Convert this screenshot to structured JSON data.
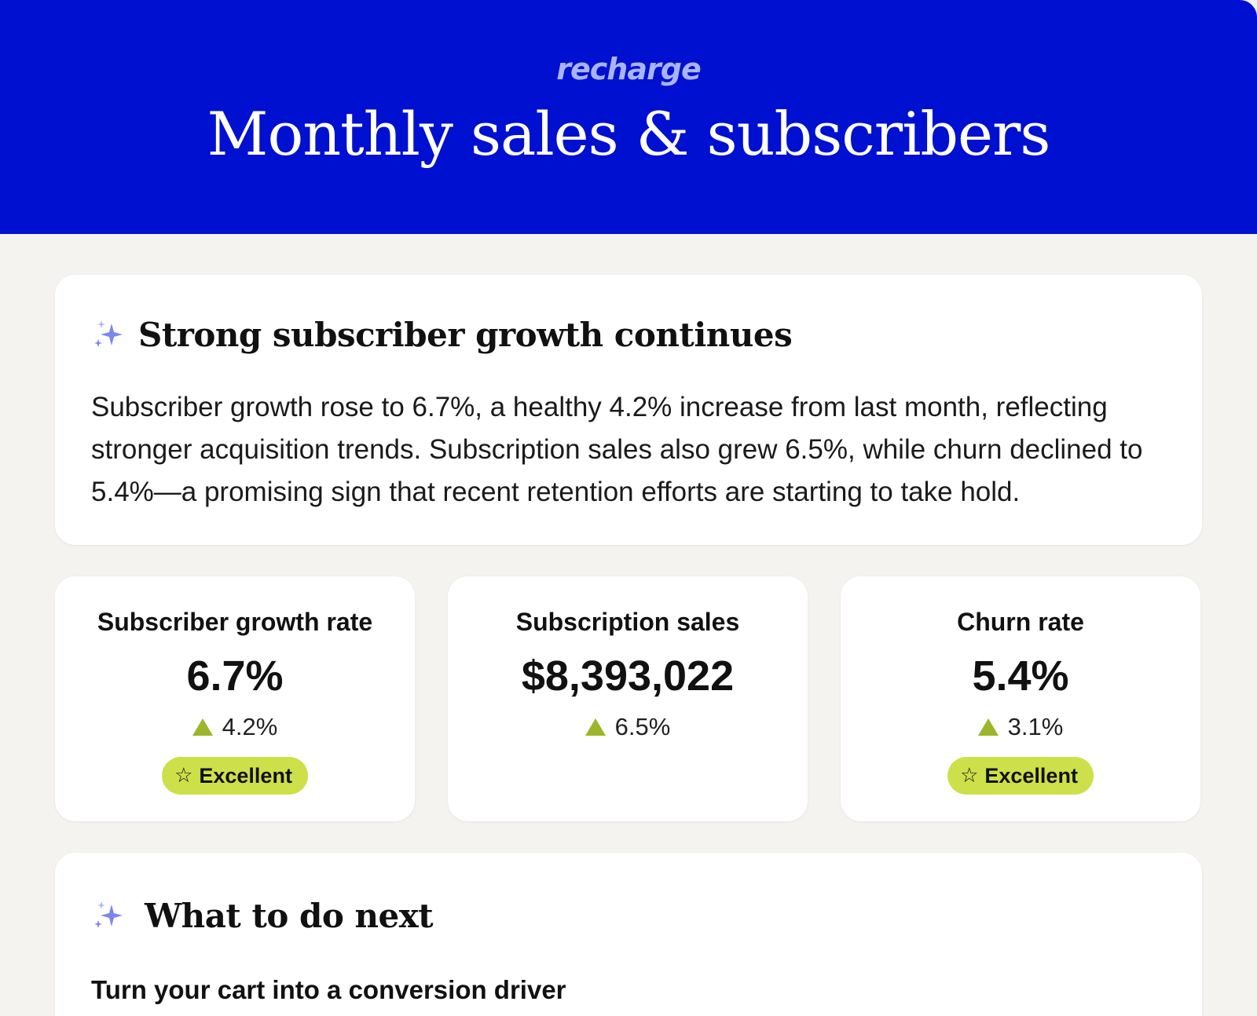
{
  "header": {
    "logo": "recharge",
    "title": "Monthly sales & subscribers"
  },
  "summary": {
    "icon": "sparkle-icon",
    "title": "Strong subscriber growth continues",
    "text": "Subscriber growth rose to 6.7%, a healthy 4.2% increase from last month, reflecting stronger acquisition trends. Subscription sales also grew 6.5%, while churn declined to 5.4%—a promising sign that recent retention efforts are starting to take hold."
  },
  "metrics": [
    {
      "label": "Subscriber growth rate",
      "value": "6.7%",
      "change": "4.2%",
      "badge": "Excellent"
    },
    {
      "label": "Subscription sales",
      "value": "$8,393,022",
      "change": "6.5%"
    },
    {
      "label": "Churn rate",
      "value": "5.4%",
      "change": "3.1%",
      "badge": "Excellent"
    }
  ],
  "next": {
    "icon": "sparkle-icon",
    "title": "What to do next",
    "items": [
      "Turn your cart into a conversion driver"
    ]
  },
  "colors": {
    "brand_blue": "#0010d0",
    "logo": "#a9b4ff",
    "background": "#f5f3f0",
    "positive": "#9db52a",
    "badge": "#cde04a",
    "sparkle": "#7b86f0"
  }
}
